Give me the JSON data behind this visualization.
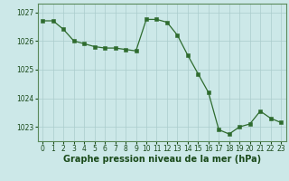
{
  "x": [
    0,
    1,
    2,
    3,
    4,
    5,
    6,
    7,
    8,
    9,
    10,
    11,
    12,
    13,
    14,
    15,
    16,
    17,
    18,
    19,
    20,
    21,
    22,
    23
  ],
  "y": [
    1026.7,
    1026.7,
    1026.4,
    1026.0,
    1025.9,
    1025.8,
    1025.75,
    1025.75,
    1025.7,
    1025.65,
    1026.75,
    1026.75,
    1026.65,
    1026.2,
    1025.5,
    1024.85,
    1024.2,
    1022.9,
    1022.75,
    1023.0,
    1023.1,
    1023.55,
    1023.3,
    1023.15
  ],
  "line_color": "#2e6b2e",
  "marker": "s",
  "marker_size": 2.5,
  "bg_color": "#cce8e8",
  "grid_color": "#aacccc",
  "xlabel": "Graphe pression niveau de la mer (hPa)",
  "xlabel_color": "#1a4a1a",
  "xlabel_fontsize": 7,
  "tick_color": "#1a4a1a",
  "tick_fontsize": 5.5,
  "ylim": [
    1022.5,
    1027.3
  ],
  "yticks": [
    1023,
    1024,
    1025,
    1026,
    1027
  ],
  "xticks": [
    0,
    1,
    2,
    3,
    4,
    5,
    6,
    7,
    8,
    9,
    10,
    11,
    12,
    13,
    14,
    15,
    16,
    17,
    18,
    19,
    20,
    21,
    22,
    23
  ],
  "border_color": "#5a8a5a",
  "xlim": [
    -0.5,
    23.5
  ]
}
